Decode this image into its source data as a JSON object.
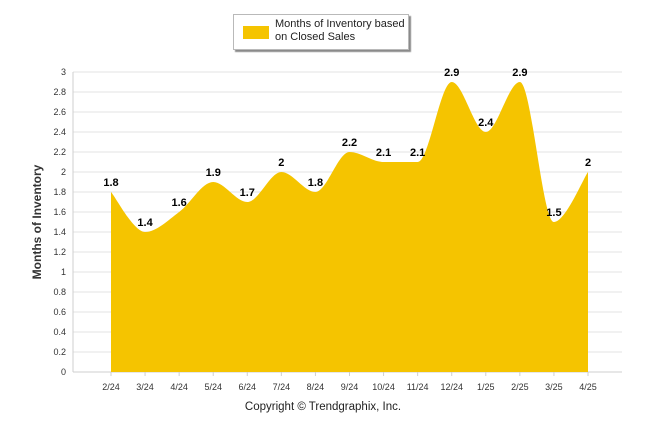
{
  "chart_data": {
    "type": "area",
    "categories": [
      "2/24",
      "3/24",
      "4/24",
      "5/24",
      "6/24",
      "7/24",
      "8/24",
      "9/24",
      "10/24",
      "11/24",
      "12/24",
      "1/25",
      "2/25",
      "3/25",
      "4/25"
    ],
    "series": [
      {
        "name": "Months of Inventory based on Closed Sales",
        "values": [
          1.8,
          1.4,
          1.6,
          1.9,
          1.7,
          2,
          1.8,
          2.2,
          2.1,
          2.1,
          2.9,
          2.4,
          2.9,
          1.5,
          2
        ]
      }
    ],
    "data_labels": [
      "1.8",
      "1.4",
      "1.6",
      "1.9",
      "1.7",
      "2",
      "1.8",
      "2.2",
      "2.1",
      "2.1",
      "2.9",
      "2.4",
      "2.9",
      "1.5",
      "2"
    ],
    "ylabel": "Months of Inventory",
    "xlabel": "",
    "ylim": [
      0,
      3
    ],
    "y_ticks": [
      "0",
      "0.2",
      "0.4",
      "0.6",
      "0.8",
      "1",
      "1.2",
      "1.4",
      "1.6",
      "1.8",
      "2",
      "2.2",
      "2.4",
      "2.6",
      "2.8",
      "3"
    ],
    "grid": true,
    "legend_position": "top-center",
    "fill_color": "#f5c400"
  },
  "legend": {
    "label": "Months of Inventory based on Closed Sales"
  },
  "footer": {
    "copyright": "Copyright © Trendgraphix, Inc."
  }
}
